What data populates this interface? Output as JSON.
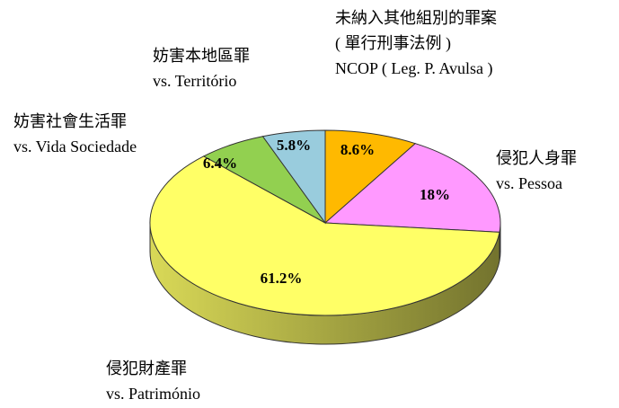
{
  "chart_data": {
    "type": "pie",
    "categories": [
      [
        "未納入其他組別的罪案",
        "( 單行刑事法例 )",
        "NCOP ( Leg. P. Avulsa )"
      ],
      [
        "侵犯人身罪",
        "vs. Pessoa"
      ],
      [
        "侵犯財產罪",
        "vs. Património"
      ],
      [
        "妨害社會生活罪",
        "vs. Vida Sociedade"
      ],
      [
        "妨害本地區罪",
        "vs. Território"
      ]
    ],
    "values": [
      8.6,
      18,
      61.2,
      6.4,
      5.8
    ],
    "value_labels": [
      "8.6%",
      "18%",
      "61.2%",
      "6.4%",
      "5.8%"
    ],
    "colors": [
      "#FFB900",
      "#FF99FF",
      "#FFFF66",
      "#92D050",
      "#99CCDD"
    ]
  }
}
